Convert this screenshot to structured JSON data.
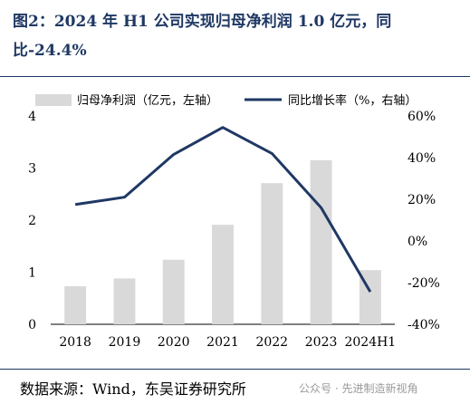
{
  "header": {
    "title": "图2：2024 年 H1 公司实现归母净利润 1.0 亿元，同比-24.4%"
  },
  "footer": {
    "source": "数据来源：Wind，东吴证券研究所",
    "watermark": "公众号 · 先进制造新视角"
  },
  "colors": {
    "bar": "#d9d9d9",
    "line": "#1f3864",
    "title": "#1f3864"
  },
  "chart_data": {
    "type": "bar",
    "categories": [
      "2018",
      "2019",
      "2020",
      "2021",
      "2022",
      "2023",
      "2024H1"
    ],
    "series": [
      {
        "name": "归母净利润（亿元，左轴）",
        "type": "bar",
        "axis": "left",
        "values": [
          0.73,
          0.88,
          1.24,
          1.91,
          2.71,
          3.15,
          1.04
        ]
      },
      {
        "name": "同比增长率（%，右轴）",
        "type": "line",
        "axis": "right",
        "values": [
          17.5,
          21.0,
          41.5,
          54.5,
          42.0,
          16.0,
          -24.4
        ]
      }
    ],
    "yleft": {
      "lim": [
        0,
        4
      ],
      "ticks": [
        "0",
        "1",
        "2",
        "3",
        "4"
      ]
    },
    "yright": {
      "lim": [
        -40,
        60
      ],
      "ticks": [
        "-40%",
        "-20%",
        "0%",
        "20%",
        "40%",
        "60%"
      ]
    },
    "legend": "top",
    "grid": false
  }
}
